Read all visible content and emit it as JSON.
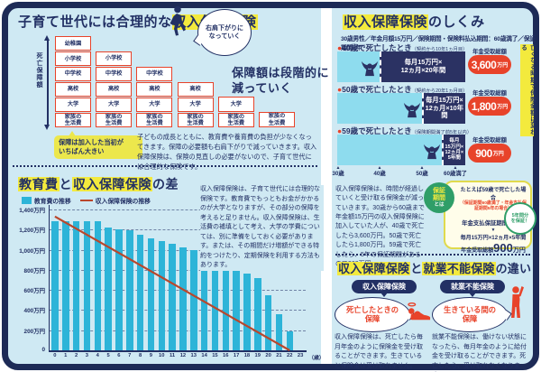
{
  "colors": {
    "navy": "#223064",
    "red_orange": "#e8432a",
    "background": "#cfe9f3",
    "bar_cyan": "#2db4d8",
    "timeline_light": "#8edcee",
    "timeline_navy": "#2b3263",
    "highlight_yellow": "#f3ea3d",
    "green": "#2f9e68",
    "line_red": "#b9472c"
  },
  "tl": {
    "title_parts": [
      {
        "t": "子育て世代には合理的な",
        "hl": false
      },
      {
        "t": "収入保障保険",
        "hl": true
      }
    ],
    "axis_label": "死亡保障額",
    "stairs": {
      "columns": [
        [
          [
            "幼稚園"
          ],
          [
            "小学校"
          ],
          [
            "中学校"
          ],
          [
            "高校"
          ],
          [
            "大学"
          ],
          [
            "家族の",
            "生活費"
          ]
        ],
        [
          [
            "小学校"
          ],
          [
            "中学校"
          ],
          [
            "高校"
          ],
          [
            "大学"
          ],
          [
            "家族の",
            "生活費"
          ]
        ],
        [
          [
            "中学校"
          ],
          [
            "高校"
          ],
          [
            "大学"
          ],
          [
            "家族の",
            "生活費"
          ]
        ],
        [
          [
            "高校"
          ],
          [
            "大学"
          ],
          [
            "家族の",
            "生活費"
          ]
        ],
        [
          [
            "大学"
          ],
          [
            "家族の",
            "生活費"
          ]
        ],
        [
          [
            "家族の",
            "生活費"
          ]
        ]
      ]
    },
    "bubble_lines": [
      "右肩下がりに",
      "なっていく"
    ],
    "caption_lines": [
      "保障額は段階的に",
      "減っていく"
    ],
    "note_lines": [
      "保障は加入した当初が",
      "いちばん大きい"
    ],
    "paragraph": "子どもの成長とともに、教育費や養育費の負担が少なくなってきます。保障の必要額も右肩下がりで減っていきます。収入保障保険は、保険の見直しの必要がないので、子育て世代には合理的な保険です。"
  },
  "bl": {
    "title_parts": [
      {
        "t": "教育費",
        "hl": true
      },
      {
        "t": "と",
        "hl": false
      },
      {
        "t": "収入保障保険",
        "hl": true
      },
      {
        "t": "の差",
        "hl": false
      }
    ],
    "legend": [
      {
        "label": "教育費の推移",
        "type": "bar"
      },
      {
        "label": "収入保障保険の推移",
        "type": "line"
      }
    ],
    "paragraph": "収入保障保険は、子育て世代には合理的な保険です。教育費でもっともお金がかかるのが大学となりますが、その部分の保障を考えると足りません。収入保障保険は、生活費の補填として考え、大学の学費については、別に準備をしておく必要があります。または、その期間だけ増額ができる特約をつけたり、定期保険を利用する方法もあります。",
    "chart_data": {
      "type": "bar",
      "x": [
        0,
        1,
        2,
        3,
        4,
        5,
        6,
        7,
        8,
        9,
        10,
        11,
        12,
        13,
        14,
        15,
        16,
        17,
        18,
        19,
        20,
        21,
        22,
        23
      ],
      "x_suffix": "（歳）",
      "ylim": [
        0,
        1400
      ],
      "grid": "dashed",
      "y_ticks": [
        {
          "label": "1,400万円",
          "v": 1400
        },
        {
          "label": "1,200万円",
          "v": 1200
        },
        {
          "label": "1,000万円",
          "v": 1000
        },
        {
          "label": "800万円",
          "v": 800
        },
        {
          "label": "600万円",
          "v": 600
        },
        {
          "label": "400万円",
          "v": 400
        },
        {
          "label": "200万円",
          "v": 200
        },
        {
          "label": "0",
          "v": 0
        }
      ],
      "series": [
        {
          "name": "教育費の推移",
          "type": "bar",
          "values": [
            1280,
            1280,
            1280,
            1280,
            1280,
            1225,
            1205,
            1190,
            1145,
            1115,
            1090,
            1055,
            1025,
            995,
            955,
            900,
            845,
            810,
            760,
            720,
            550,
            355,
            185,
            0
          ]
        },
        {
          "name": "収入保障保険の推移",
          "type": "line",
          "points": [
            [
              0,
              1330
            ],
            [
              22,
              0
            ]
          ]
        }
      ]
    }
  },
  "tr": {
    "title_parts": [
      {
        "t": "収入保障保険",
        "hl": true
      },
      {
        "t": "のしくみ",
        "hl": false
      }
    ],
    "conditions": "30歳男性／年金月額15万円／保険期間・保険料払込期間：60歳満了／保証期間5年",
    "rows": [
      {
        "bullet": "●",
        "label": "40歳で死亡したとき",
        "note": "（契約から10年1ヵ月目）",
        "lived_ratio": 0.33,
        "formula_lines": [
          "毎月15万円×",
          "12ヵ月×20年間"
        ],
        "total_label": "年金受取総額",
        "amount": "3,600",
        "unit": "万円"
      },
      {
        "bullet": "●",
        "label": "50歳で死亡したとき",
        "note": "（契約から20年1ヵ月目）",
        "lived_ratio": 0.66,
        "formula_lines": [
          "毎月15万円×",
          "12ヵ月×10年間"
        ],
        "total_label": "年金受取総額",
        "amount": "1,800",
        "unit": "万円"
      },
      {
        "bullet": "●",
        "label": "59歳で死亡したとき",
        "note": "（保険期間満了前5年以内）",
        "lived_ratio": 0.815,
        "formula_lines": [
          "毎月",
          "15万円×",
          "12ヵ月×",
          "5年間"
        ],
        "total_label": "年金受取総額",
        "amount": "900",
        "unit": "万円"
      }
    ],
    "timeline": [
      "30歳",
      "40歳",
      "50歳",
      "60歳満了"
    ],
    "timeline_marker": "▲",
    "side_note": "亡くなる時期で保険金額は変わる",
    "paragraph": "収入保障保険は、時間が経過していくと受け取る保険金が減っていきます。30歳から60歳まで年金額15万円の収入保障保険に加入していた人が、40歳で死亡したら3,600万円。50歳で死亡したら1,800万円。59歳で死亡したら、5年の保証期間があるので900万円。",
    "hosho": {
      "circle_lines": [
        "保証",
        "期間",
        "とは"
      ],
      "case_title": "たとえば59歳で死亡した場合",
      "case_note": "（保証期間60歳満了・年金支払保証期間5年の場合）",
      "guarantee_label": "年金支払保証期間",
      "guarantee_big": "5年",
      "arrow": "▼",
      "formula": "毎月15万円×12ヵ月×5年間",
      "total_label": "年金受取総額",
      "amount": "900",
      "unit": "万円",
      "badge_lines": [
        "5年間分",
        "を保証！"
      ]
    }
  },
  "br": {
    "title_parts": [
      {
        "t": "収入保障保険",
        "hl": true
      },
      {
        "t": "と",
        "hl": false
      },
      {
        "t": "就業不能保険",
        "hl": true
      },
      {
        "t": "の違い",
        "hl": false
      }
    ],
    "left": {
      "pill": "収入保障保険",
      "bubble_lines": [
        "死亡したときの",
        "保障"
      ],
      "text": "収入保障保険は、死亡したら毎月年金のように保険金を受け取ることができます。生きていると保険金は受け取れません。"
    },
    "right": {
      "pill": "就業不能保険",
      "bubble_lines": [
        "生きている間の",
        "保障"
      ],
      "text": "就業不能保険は、働けない状態になったら、毎月年金のように給付金を受け取ることができます。死亡したら、受け取れなくなります。"
    }
  }
}
